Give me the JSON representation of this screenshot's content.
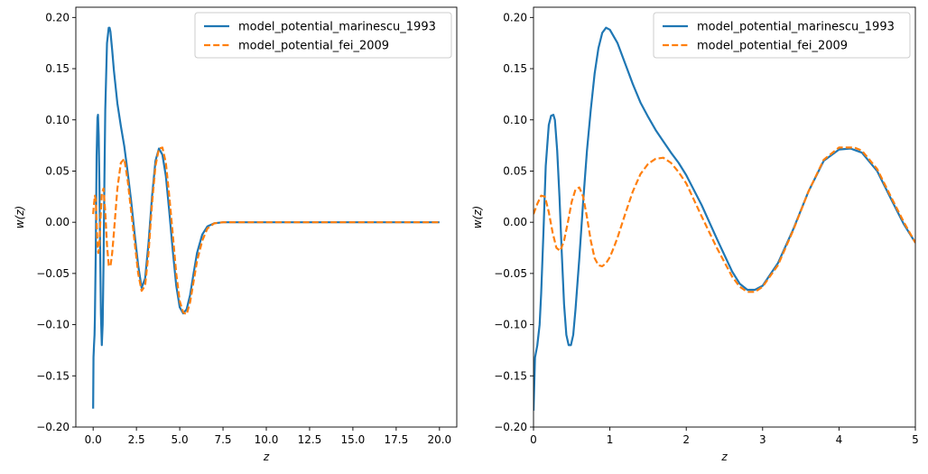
{
  "chart_data": [
    {
      "type": "line",
      "xlabel": "z",
      "ylabel": "w(z)",
      "xlim": [
        -1.0,
        21.0
      ],
      "ylim": [
        -0.2,
        0.21
      ],
      "xticks": [
        0.0,
        2.5,
        5.0,
        7.5,
        10.0,
        12.5,
        15.0,
        17.5,
        20.0
      ],
      "xtick_labels": [
        "0.0",
        "2.5",
        "5.0",
        "7.5",
        "10.0",
        "12.5",
        "15.0",
        "17.5",
        "20.0"
      ],
      "yticks": [
        -0.2,
        -0.15,
        -0.1,
        -0.05,
        0.0,
        0.05,
        0.1,
        0.15,
        0.2
      ],
      "ytick_labels": [
        "−0.20",
        "−0.15",
        "−0.10",
        "−0.05",
        "0.00",
        "0.05",
        "0.10",
        "0.15",
        "0.20"
      ],
      "legend_position": "top-right",
      "grid": false,
      "series": [
        {
          "name": "model_potential_marinescu_1993",
          "color": "#1f77b4",
          "style": "solid",
          "x": [
            0.0,
            0.02,
            0.05,
            0.08,
            0.1,
            0.15,
            0.2,
            0.25,
            0.28,
            0.32,
            0.36,
            0.4,
            0.45,
            0.5,
            0.55,
            0.6,
            0.65,
            0.7,
            0.8,
            0.9,
            0.95,
            1.0,
            1.1,
            1.2,
            1.4,
            1.6,
            1.8,
            2.0,
            2.2,
            2.4,
            2.6,
            2.8,
            3.0,
            3.2,
            3.4,
            3.6,
            3.8,
            4.0,
            4.2,
            4.4,
            4.6,
            4.8,
            5.0,
            5.2,
            5.4,
            5.6,
            5.8,
            6.0,
            6.3,
            6.6,
            7.0,
            7.5,
            8.0,
            8.5,
            9.0,
            9.5,
            10.0,
            11.0,
            12.0,
            14.0,
            16.0,
            18.0,
            20.0
          ],
          "y": [
            -0.182,
            -0.132,
            -0.12,
            -0.11,
            -0.095,
            -0.03,
            0.065,
            0.102,
            0.105,
            0.085,
            0.04,
            -0.02,
            -0.09,
            -0.12,
            -0.1,
            -0.04,
            0.04,
            0.11,
            0.175,
            0.19,
            0.19,
            0.186,
            0.168,
            0.148,
            0.116,
            0.094,
            0.074,
            0.048,
            0.02,
            -0.012,
            -0.042,
            -0.064,
            -0.055,
            -0.02,
            0.025,
            0.06,
            0.072,
            0.066,
            0.045,
            0.01,
            -0.028,
            -0.062,
            -0.083,
            -0.089,
            -0.085,
            -0.071,
            -0.05,
            -0.03,
            -0.012,
            -0.004,
            -0.001,
            0.0,
            0.0,
            0.0,
            0.0,
            0.0,
            0.0,
            0.0,
            0.0,
            0.0,
            0.0,
            0.0,
            0.0
          ]
        },
        {
          "name": "model_potential_fei_2009",
          "color": "#ff7f0e",
          "style": "dashed",
          "x": [
            0.0,
            0.05,
            0.1,
            0.15,
            0.2,
            0.25,
            0.3,
            0.35,
            0.4,
            0.5,
            0.6,
            0.7,
            0.8,
            0.9,
            1.0,
            1.1,
            1.2,
            1.4,
            1.6,
            1.8,
            2.0,
            2.2,
            2.4,
            2.6,
            2.8,
            3.0,
            3.2,
            3.4,
            3.6,
            3.8,
            4.0,
            4.2,
            4.4,
            4.6,
            4.8,
            5.0,
            5.2,
            5.4,
            5.6,
            5.8,
            6.0,
            6.3,
            6.6,
            7.0,
            7.5,
            8.0,
            8.5,
            9.0,
            9.5,
            10.0,
            11.0,
            12.0,
            14.0,
            16.0,
            18.0,
            20.0
          ],
          "y": [
            0.008,
            0.018,
            0.026,
            0.022,
            0.0,
            -0.022,
            -0.03,
            -0.025,
            -0.005,
            0.028,
            0.033,
            0.01,
            -0.022,
            -0.042,
            -0.043,
            -0.03,
            -0.01,
            0.033,
            0.058,
            0.062,
            0.04,
            0.01,
            -0.02,
            -0.05,
            -0.067,
            -0.062,
            -0.03,
            0.018,
            0.055,
            0.072,
            0.073,
            0.058,
            0.025,
            -0.012,
            -0.05,
            -0.077,
            -0.088,
            -0.09,
            -0.078,
            -0.058,
            -0.038,
            -0.018,
            -0.006,
            -0.001,
            0.0,
            0.0,
            0.0,
            0.0,
            0.0,
            0.0,
            0.0,
            0.0,
            0.0,
            0.0,
            0.0,
            0.0
          ]
        }
      ]
    },
    {
      "type": "line",
      "xlabel": "z",
      "ylabel": "w(z)",
      "xlim": [
        0,
        5
      ],
      "ylim": [
        -0.2,
        0.21
      ],
      "xticks": [
        0,
        1,
        2,
        3,
        4,
        5
      ],
      "xtick_labels": [
        "0",
        "1",
        "2",
        "3",
        "4",
        "5"
      ],
      "yticks": [
        -0.2,
        -0.15,
        -0.1,
        -0.05,
        0.0,
        0.05,
        0.1,
        0.15,
        0.2
      ],
      "ytick_labels": [
        "−0.20",
        "−0.15",
        "−0.10",
        "−0.05",
        "0.00",
        "0.05",
        "0.10",
        "0.15",
        "0.20"
      ],
      "legend_position": "top-right",
      "grid": false,
      "series": [
        {
          "name": "model_potential_marinescu_1993",
          "color": "#1f77b4",
          "style": "solid",
          "x": [
            0.0,
            0.02,
            0.05,
            0.08,
            0.1,
            0.13,
            0.16,
            0.2,
            0.23,
            0.26,
            0.28,
            0.31,
            0.34,
            0.37,
            0.4,
            0.43,
            0.46,
            0.49,
            0.52,
            0.55,
            0.6,
            0.65,
            0.7,
            0.75,
            0.8,
            0.85,
            0.9,
            0.95,
            1.0,
            1.1,
            1.2,
            1.3,
            1.4,
            1.5,
            1.6,
            1.7,
            1.8,
            1.9,
            2.0,
            2.2,
            2.4,
            2.6,
            2.7,
            2.8,
            2.9,
            3.0,
            3.2,
            3.4,
            3.6,
            3.8,
            4.0,
            4.15,
            4.3,
            4.5,
            4.7,
            4.85,
            5.0
          ],
          "y": [
            -0.184,
            -0.132,
            -0.12,
            -0.1,
            -0.07,
            -0.01,
            0.055,
            0.095,
            0.104,
            0.105,
            0.1,
            0.07,
            0.025,
            -0.03,
            -0.08,
            -0.11,
            -0.12,
            -0.12,
            -0.11,
            -0.085,
            -0.035,
            0.02,
            0.07,
            0.11,
            0.145,
            0.17,
            0.185,
            0.19,
            0.188,
            0.175,
            0.155,
            0.135,
            0.117,
            0.103,
            0.09,
            0.079,
            0.068,
            0.058,
            0.046,
            0.017,
            -0.016,
            -0.048,
            -0.06,
            -0.066,
            -0.066,
            -0.062,
            -0.04,
            -0.007,
            0.03,
            0.06,
            0.071,
            0.072,
            0.068,
            0.05,
            0.02,
            -0.002,
            -0.02
          ]
        },
        {
          "name": "model_potential_fei_2009",
          "color": "#ff7f0e",
          "style": "dashed",
          "x": [
            0.0,
            0.05,
            0.1,
            0.15,
            0.2,
            0.25,
            0.3,
            0.35,
            0.4,
            0.45,
            0.5,
            0.55,
            0.6,
            0.65,
            0.7,
            0.75,
            0.8,
            0.85,
            0.9,
            0.95,
            1.0,
            1.05,
            1.1,
            1.2,
            1.3,
            1.4,
            1.5,
            1.6,
            1.7,
            1.8,
            1.9,
            2.0,
            2.2,
            2.4,
            2.6,
            2.7,
            2.8,
            2.9,
            3.0,
            3.2,
            3.4,
            3.6,
            3.8,
            4.0,
            4.2,
            4.3,
            4.5,
            4.7,
            4.85,
            5.0
          ],
          "y": [
            0.008,
            0.018,
            0.026,
            0.025,
            0.01,
            -0.01,
            -0.025,
            -0.028,
            -0.018,
            0.0,
            0.02,
            0.032,
            0.034,
            0.025,
            0.005,
            -0.018,
            -0.035,
            -0.042,
            -0.043,
            -0.04,
            -0.034,
            -0.025,
            -0.015,
            0.008,
            0.03,
            0.047,
            0.057,
            0.062,
            0.063,
            0.058,
            0.049,
            0.038,
            0.006,
            -0.025,
            -0.053,
            -0.063,
            -0.068,
            -0.068,
            -0.063,
            -0.042,
            -0.008,
            0.03,
            0.061,
            0.073,
            0.073,
            0.07,
            0.052,
            0.022,
            0.0,
            -0.02
          ]
        }
      ]
    }
  ]
}
